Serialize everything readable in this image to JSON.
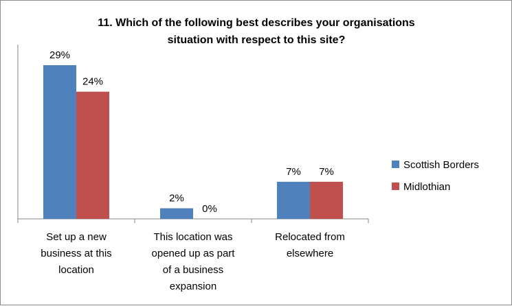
{
  "chart_data": {
    "type": "bar",
    "title": [
      "11.  Which of the following best describes your organisations",
      "situation with respect to this site?"
    ],
    "categories": [
      [
        "Set up a new",
        "business at this",
        "location"
      ],
      [
        "This location was",
        "opened up as part",
        "of a business",
        "expansion"
      ],
      [
        "Relocated from",
        "elsewhere"
      ]
    ],
    "series": [
      {
        "name": "Scottish Borders",
        "values": [
          29,
          2,
          7
        ],
        "labels": [
          "29%",
          "2%",
          "7%"
        ],
        "color": "#4f81bd"
      },
      {
        "name": "Midlothian",
        "values": [
          24,
          0,
          7
        ],
        "labels": [
          "24%",
          "0%",
          "7%"
        ],
        "color": "#c0504d"
      }
    ],
    "ylim": [
      0,
      30
    ],
    "grid": false,
    "legend": "right"
  }
}
